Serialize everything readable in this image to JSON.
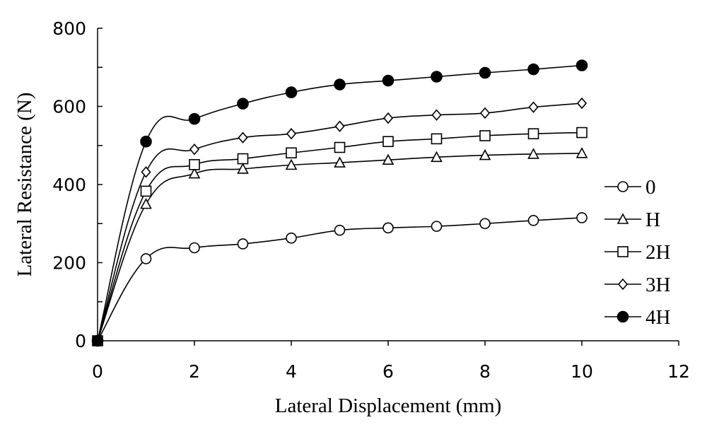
{
  "chart_data": {
    "type": "line",
    "title": "",
    "xlabel": "Lateral Displacement (mm)",
    "ylabel": "Lateral Resistance (N)",
    "xlim": [
      0,
      12
    ],
    "ylim": [
      0,
      800
    ],
    "xticks": [
      0,
      2,
      4,
      6,
      8,
      10,
      12
    ],
    "yticks": [
      0,
      200,
      400,
      600,
      800
    ],
    "grid": false,
    "legend_position": "right",
    "x": [
      0,
      1,
      2,
      3,
      4,
      5,
      6,
      7,
      8,
      9,
      10
    ],
    "series": [
      {
        "name": "0",
        "marker": "circle-open",
        "values": [
          0,
          210,
          238,
          248,
          263,
          283,
          289,
          293,
          300,
          308,
          315
        ]
      },
      {
        "name": "H",
        "marker": "triangle-open",
        "values": [
          0,
          350,
          428,
          440,
          450,
          456,
          463,
          470,
          475,
          478,
          480
        ]
      },
      {
        "name": "2H",
        "marker": "square-open",
        "values": [
          0,
          383,
          451,
          466,
          481,
          495,
          510,
          517,
          525,
          530,
          533
        ]
      },
      {
        "name": "3H",
        "marker": "diamond-open",
        "values": [
          0,
          432,
          490,
          520,
          530,
          549,
          570,
          578,
          583,
          598,
          608
        ]
      },
      {
        "name": "4H",
        "marker": "circle-filled",
        "values": [
          0,
          510,
          568,
          607,
          636,
          656,
          666,
          676,
          686,
          695,
          705
        ]
      }
    ]
  }
}
